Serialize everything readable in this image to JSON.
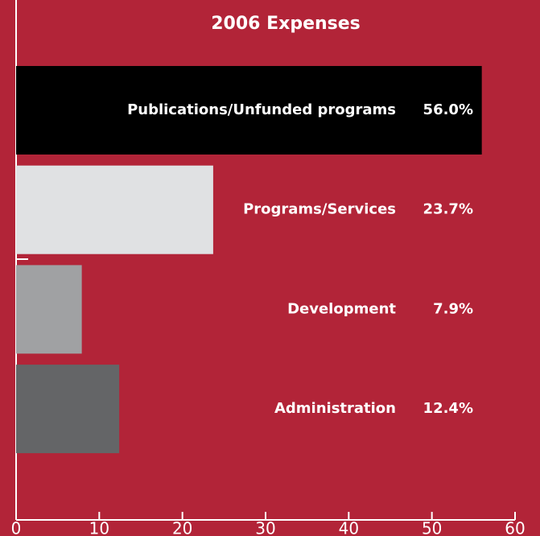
{
  "chart_data": {
    "type": "bar",
    "orientation": "horizontal",
    "title": "2006 Expenses",
    "categories": [
      "Publications/Unfunded programs",
      "Programs/Services",
      "Development",
      "Administration"
    ],
    "values": [
      56.0,
      23.7,
      7.9,
      12.4
    ],
    "value_labels": [
      "56.0%",
      "23.7%",
      "7.9%",
      "12.4%"
    ],
    "colors": [
      "#000000",
      "#e0e1e3",
      "#a0a1a3",
      "#646567"
    ],
    "xlim": [
      0,
      60
    ],
    "xticks": [
      0,
      10,
      20,
      30,
      40,
      50,
      60
    ],
    "grid": false
  }
}
